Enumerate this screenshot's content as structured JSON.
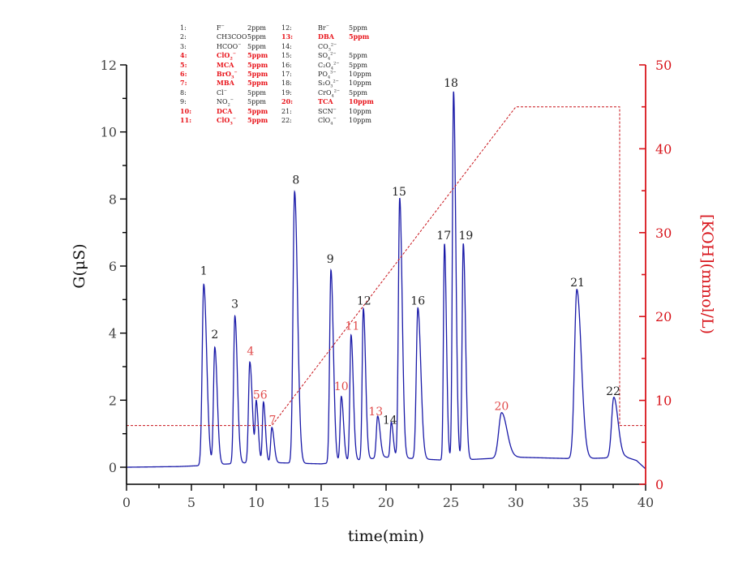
{
  "chart_data": {
    "type": "line",
    "title": "",
    "xlabel": "time(min)",
    "ylabel": "G(μS)",
    "y2label": "[KOH](mmol/L)",
    "xlim": [
      0,
      40
    ],
    "ylim": [
      -0.5,
      12
    ],
    "y2lim": [
      0,
      50
    ],
    "x_ticks": [
      0,
      5,
      10,
      15,
      20,
      25,
      30,
      35,
      40
    ],
    "y_ticks": [
      0,
      2,
      4,
      6,
      8,
      10,
      12
    ],
    "y2_ticks": [
      0,
      10,
      20,
      30,
      40,
      50
    ],
    "grid": false,
    "colors": {
      "signal": "#1a1aa8",
      "gradient": "#c8141b",
      "right_axis": "#d8141b",
      "highlight_label": "#e04a4a",
      "normal_label": "#222222"
    },
    "series": [
      {
        "name": "Conductivity signal",
        "axis": "left",
        "style": "solid",
        "baseline": [
          [
            0,
            0
          ],
          [
            4,
            0.02
          ],
          [
            5.8,
            0.05
          ],
          [
            10,
            0.15
          ],
          [
            15,
            0.1
          ],
          [
            20,
            0.3
          ],
          [
            25,
            0.2
          ],
          [
            30,
            0.3
          ],
          [
            35,
            0.25
          ],
          [
            38.5,
            0.3
          ],
          [
            39.3,
            0.2
          ],
          [
            40,
            -0.05
          ]
        ],
        "peaks": [
          {
            "id": "1",
            "t": 5.95,
            "height": 5.4,
            "width": 0.12,
            "highlight": false
          },
          {
            "id": "2",
            "t": 6.8,
            "height": 3.5,
            "width": 0.1,
            "highlight": false
          },
          {
            "id": "3",
            "t": 8.35,
            "height": 4.4,
            "width": 0.1,
            "highlight": false
          },
          {
            "id": "4",
            "t": 9.5,
            "height": 3.0,
            "width": 0.1,
            "highlight": false
          },
          {
            "id": "5",
            "t": 10.0,
            "height": 1.75,
            "width": 0.08,
            "highlight": false
          },
          {
            "id": "6",
            "t": 10.55,
            "height": 1.8,
            "width": 0.08,
            "highlight": false
          },
          {
            "id": "7",
            "t": 11.2,
            "height": 1.05,
            "width": 0.09,
            "highlight": false
          },
          {
            "id": "8",
            "t": 12.95,
            "height": 8.1,
            "width": 0.12,
            "highlight": false
          },
          {
            "id": "9",
            "t": 15.75,
            "height": 5.75,
            "width": 0.1,
            "highlight": false
          },
          {
            "id": "10",
            "t": 16.55,
            "height": 1.95,
            "width": 0.09,
            "highlight": false
          },
          {
            "id": "11",
            "t": 17.3,
            "height": 3.75,
            "width": 0.09,
            "highlight": false
          },
          {
            "id": "12",
            "t": 18.25,
            "height": 4.5,
            "width": 0.09,
            "highlight": false
          },
          {
            "id": "13",
            "t": 19.35,
            "height": 1.25,
            "width": 0.1,
            "highlight": false
          },
          {
            "id": "14",
            "t": 20.4,
            "height": 1.05,
            "width": 0.08,
            "highlight": false
          },
          {
            "id": "15",
            "t": 21.05,
            "height": 7.75,
            "width": 0.1,
            "highlight": false
          },
          {
            "id": "16",
            "t": 22.45,
            "height": 4.5,
            "width": 0.12,
            "highlight": false
          },
          {
            "id": "17",
            "t": 24.5,
            "height": 6.45,
            "width": 0.08,
            "highlight": false
          },
          {
            "id": "18",
            "t": 25.2,
            "height": 11.0,
            "width": 0.09,
            "highlight": false
          },
          {
            "id": "19",
            "t": 25.95,
            "height": 6.45,
            "width": 0.09,
            "highlight": false
          },
          {
            "id": "20",
            "t": 28.9,
            "height": 1.35,
            "width": 0.22,
            "highlight": false
          },
          {
            "id": "21",
            "t": 34.7,
            "height": 5.05,
            "width": 0.18,
            "highlight": false
          },
          {
            "id": "22",
            "t": 37.55,
            "height": 1.8,
            "width": 0.17,
            "highlight": false
          }
        ]
      },
      {
        "name": "KOH gradient",
        "axis": "right",
        "style": "dashed",
        "points": [
          [
            0,
            7
          ],
          [
            11.2,
            7
          ],
          [
            30,
            45
          ],
          [
            38,
            45
          ],
          [
            38,
            7
          ],
          [
            40,
            7
          ]
        ]
      }
    ],
    "peak_labels": [
      {
        "text": "1",
        "t": 5.95,
        "y": 5.75,
        "highlight": false
      },
      {
        "text": "2",
        "t": 6.8,
        "y": 3.85,
        "highlight": false
      },
      {
        "text": "3",
        "t": 8.35,
        "y": 4.75,
        "highlight": false
      },
      {
        "text": "4",
        "t": 9.55,
        "y": 3.35,
        "highlight": true
      },
      {
        "text": "56",
        "t": 10.3,
        "y": 2.05,
        "highlight": true
      },
      {
        "text": "7",
        "t": 11.25,
        "y": 1.3,
        "highlight": true
      },
      {
        "text": "8",
        "t": 13.05,
        "y": 8.45,
        "highlight": false
      },
      {
        "text": "9",
        "t": 15.7,
        "y": 6.1,
        "highlight": false
      },
      {
        "text": "10",
        "t": 16.55,
        "y": 2.3,
        "highlight": true
      },
      {
        "text": "11",
        "t": 17.4,
        "y": 4.1,
        "highlight": true
      },
      {
        "text": "12",
        "t": 18.3,
        "y": 4.85,
        "highlight": false
      },
      {
        "text": "13",
        "t": 19.2,
        "y": 1.55,
        "highlight": true
      },
      {
        "text": "14",
        "t": 20.3,
        "y": 1.3,
        "highlight": false
      },
      {
        "text": "15",
        "t": 21.0,
        "y": 8.1,
        "highlight": false
      },
      {
        "text": "16",
        "t": 22.45,
        "y": 4.85,
        "highlight": false
      },
      {
        "text": "17",
        "t": 24.45,
        "y": 6.8,
        "highlight": false
      },
      {
        "text": "18",
        "t": 25.0,
        "y": 11.35,
        "highlight": false
      },
      {
        "text": "19",
        "t": 26.15,
        "y": 6.8,
        "highlight": false
      },
      {
        "text": "20",
        "t": 28.9,
        "y": 1.7,
        "highlight": true
      },
      {
        "text": "21",
        "t": 34.75,
        "y": 5.4,
        "highlight": false
      },
      {
        "text": "22",
        "t": 37.5,
        "y": 2.15,
        "highlight": false
      }
    ],
    "legend": {
      "placement": "top-left",
      "entries": [
        {
          "no": "1:",
          "name": "F",
          "charge": "−",
          "conc": "2ppm",
          "highlight": false
        },
        {
          "no": "2:",
          "name": "CH3COO",
          "charge": "−",
          "conc": "5ppm",
          "highlight": false
        },
        {
          "no": "3:",
          "name": "HCOO",
          "charge": "−",
          "conc": "5ppm",
          "highlight": false
        },
        {
          "no": "4:",
          "name": "ClO",
          "sub": "2",
          "charge": "−",
          "conc": "5ppm",
          "highlight": true
        },
        {
          "no": "5:",
          "name": "MCA",
          "conc": "5ppm",
          "highlight": true
        },
        {
          "no": "6:",
          "name": "BrO",
          "sub": "3",
          "charge": "−",
          "conc": "5ppm",
          "highlight": true
        },
        {
          "no": "7:",
          "name": "MBA",
          "conc": "5ppm",
          "highlight": true
        },
        {
          "no": "8:",
          "name": "Cl",
          "charge": "−",
          "conc": "5ppm",
          "highlight": false
        },
        {
          "no": "9:",
          "name": "NO",
          "sub": "2",
          "charge": "−",
          "conc": "5ppm",
          "highlight": false
        },
        {
          "no": "10:",
          "name": "DCA",
          "conc": "5ppm",
          "highlight": true
        },
        {
          "no": "11:",
          "name": "ClO",
          "sub": "3",
          "charge": "−",
          "conc": "5ppm",
          "highlight": true
        },
        {
          "no": "12:",
          "name": "Br",
          "charge": "−",
          "conc": "5ppm",
          "highlight": false
        },
        {
          "no": "13:",
          "name": "DBA",
          "conc": "5ppm",
          "highlight": true
        },
        {
          "no": "14:",
          "name": "CO",
          "sub": "3",
          "charge": "2−",
          "conc": "",
          "highlight": false
        },
        {
          "no": "15:",
          "name": "SO",
          "sub": "4",
          "charge": "2−",
          "conc": "5ppm",
          "highlight": false
        },
        {
          "no": "16:",
          "name": "C₂O",
          "sub": "4",
          "charge": "2−",
          "conc": "5ppm",
          "highlight": false
        },
        {
          "no": "17:",
          "name": "PO",
          "sub": "4",
          "charge": "3−",
          "conc": "10ppm",
          "highlight": false
        },
        {
          "no": "18:",
          "name": "S₂O",
          "sub": "3",
          "charge": "2−",
          "conc": "10ppm",
          "highlight": false
        },
        {
          "no": "19:",
          "name": "CrO",
          "sub": "4",
          "charge": "2−",
          "conc": "5ppm",
          "highlight": false
        },
        {
          "no": "20:",
          "name": "TCA",
          "conc": "10ppm",
          "highlight": true
        },
        {
          "no": "21:",
          "name": "SCN",
          "charge": "−",
          "conc": "10ppm",
          "highlight": false
        },
        {
          "no": "22:",
          "name": "ClO",
          "sub": "4",
          "charge": "−",
          "conc": "10ppm",
          "highlight": false
        }
      ]
    }
  }
}
